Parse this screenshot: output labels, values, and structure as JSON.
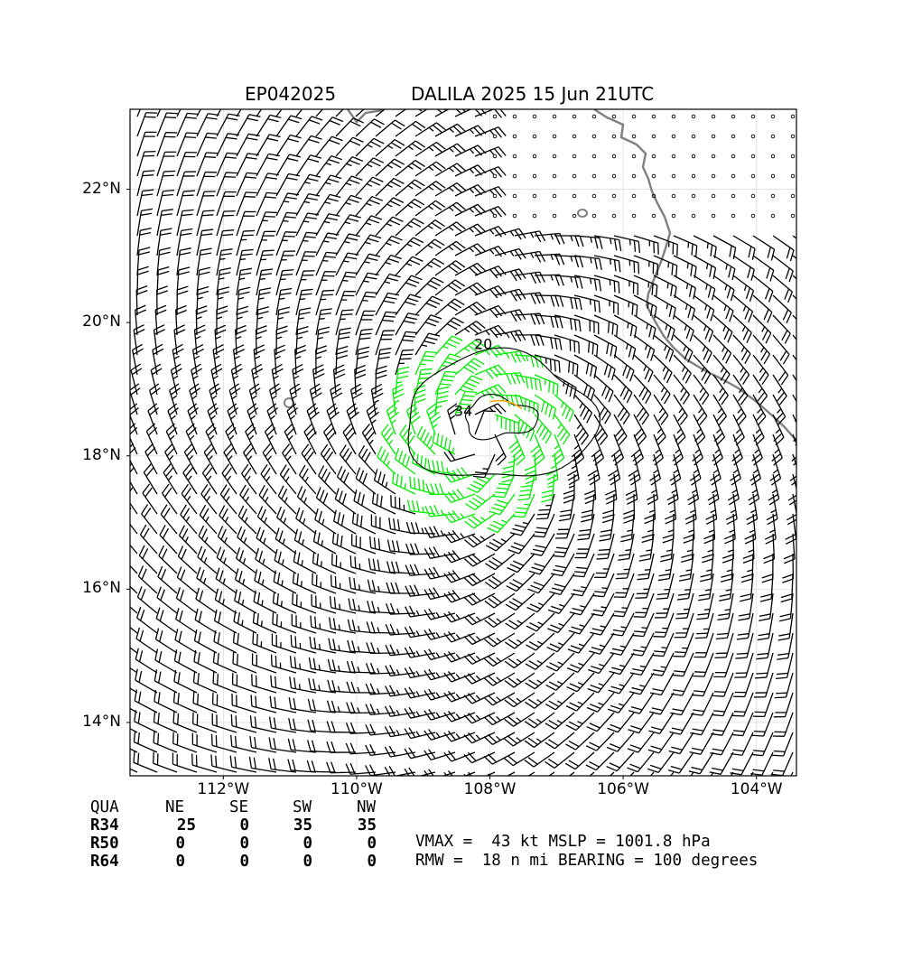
{
  "header": {
    "storm_id": "EP042025",
    "title": "DALILA 2025 15 Jun 21UTC"
  },
  "map": {
    "lon_range": [
      -113.4,
      -103.4
    ],
    "lat_range": [
      13.2,
      23.2
    ],
    "lat_ticks": [
      {
        "value": 14,
        "label": "14°N"
      },
      {
        "value": 16,
        "label": "16°N"
      },
      {
        "value": 18,
        "label": "18°N"
      },
      {
        "value": 20,
        "label": "20°N"
      },
      {
        "value": 22,
        "label": "22°N"
      }
    ],
    "lon_ticks": [
      {
        "value": -112,
        "label": "112°W"
      },
      {
        "value": -110,
        "label": "110°W"
      },
      {
        "value": -108,
        "label": "108°W"
      },
      {
        "value": -106,
        "label": "106°W"
      },
      {
        "value": -104,
        "label": "104°W"
      }
    ],
    "gridlines": true,
    "storm_center": {
      "lon": -108.2,
      "lat": 18.3
    },
    "contour_labels": [
      {
        "text": "20",
        "lon": -108.1,
        "lat": 19.6
      },
      {
        "text": "34",
        "lon": -108.4,
        "lat": 18.6
      }
    ],
    "colors": {
      "barb": "#000000",
      "gale_barb": "#00ee00",
      "coast": "#808080",
      "contour": "#000000",
      "storm_force_contour": "#ffa500"
    }
  },
  "wind_radii": {
    "header": [
      "QUA",
      "NE",
      "SE",
      "SW",
      "NW"
    ],
    "rows": [
      {
        "label": "R34",
        "values": [
          "25",
          "0",
          "35",
          "35"
        ]
      },
      {
        "label": "R50",
        "values": [
          "0",
          "0",
          "0",
          "0"
        ]
      },
      {
        "label": "R64",
        "values": [
          "0",
          "0",
          "0",
          "0"
        ]
      }
    ]
  },
  "info": {
    "line1": "VMAX =  43 kt MSLP = 1001.8 hPa",
    "line2": "RMW =  18 n mi BEARING = 100 degrees"
  }
}
